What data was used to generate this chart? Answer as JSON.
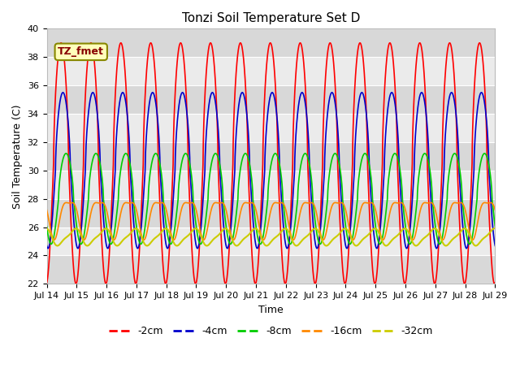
{
  "title": "Tonzi Soil Temperature Set D",
  "xlabel": "Time",
  "ylabel": "Soil Temperature (C)",
  "ylim": [
    22,
    40
  ],
  "xlim": [
    0,
    360
  ],
  "annotation": "TZ_fmet",
  "legend_labels": [
    "-2cm",
    "-4cm",
    "-8cm",
    "-16cm",
    "-32cm"
  ],
  "line_colors": [
    "#ff0000",
    "#0000cc",
    "#00cc00",
    "#ff8800",
    "#cccc00"
  ],
  "line_widths": [
    1.2,
    1.2,
    1.2,
    1.2,
    1.5
  ],
  "xtick_positions": [
    0,
    24,
    48,
    72,
    96,
    120,
    144,
    168,
    192,
    216,
    240,
    264,
    288,
    312,
    336,
    360
  ],
  "xtick_labels": [
    "Jul 14",
    "Jul 15",
    "Jul 16",
    "Jul 17",
    "Jul 18",
    "Jul 19",
    "Jul 20",
    "Jul 21",
    "Jul 22",
    "Jul 23",
    "Jul 24",
    "Jul 25",
    "Jul 26",
    "Jul 27",
    "Jul 28",
    "Jul 29"
  ],
  "background_color": "#ffffff",
  "plot_bg_color": "#e8e8e8",
  "title_fontsize": 11,
  "label_fontsize": 9,
  "tick_fontsize": 8,
  "ytick_values": [
    22,
    24,
    26,
    28,
    30,
    32,
    34,
    36,
    38,
    40
  ],
  "band_light": "#ebebeb",
  "band_dark": "#d8d8d8",
  "grid_color": "#cccccc"
}
